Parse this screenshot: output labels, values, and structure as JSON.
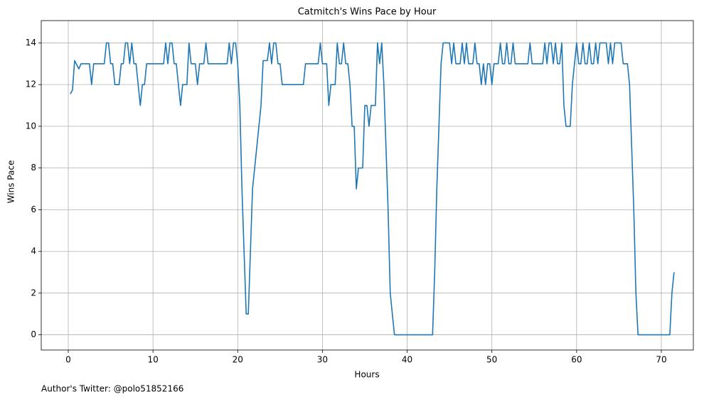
{
  "chart_data": {
    "type": "line",
    "title": "Catmitch's Wins Pace by Hour",
    "xlabel": "Hours",
    "ylabel": "Wins Pace",
    "footer": "Author's Twitter: @polo51852166",
    "x": [
      0.25,
      0.5,
      0.75,
      1.25,
      1.5,
      2.5,
      2.75,
      3,
      4.25,
      4.5,
      4.75,
      5,
      5.25,
      5.5,
      6,
      6.25,
      6.5,
      6.75,
      7,
      7.25,
      7.5,
      7.75,
      8,
      8.25,
      8.5,
      8.75,
      9,
      9.25,
      11.25,
      11.5,
      11.75,
      12,
      12.25,
      12.5,
      12.75,
      13.25,
      13.5,
      14,
      14.25,
      14.5,
      15,
      15.25,
      15.5,
      16,
      16.25,
      16.5,
      18.75,
      19,
      19.25,
      19.5,
      19.75,
      20,
      20.25,
      20.5,
      20.75,
      21,
      21.25,
      21.5,
      21.75,
      22,
      22.75,
      23,
      23.5,
      23.75,
      24,
      24.25,
      24.5,
      24.75,
      25,
      25.25,
      27.75,
      28,
      29.5,
      29.75,
      30,
      30.5,
      30.75,
      31,
      31.5,
      31.75,
      32,
      32.25,
      32.5,
      32.75,
      33,
      33.25,
      33.5,
      33.75,
      34,
      34.25,
      34.75,
      35,
      35.25,
      35.5,
      35.75,
      36.25,
      36.5,
      36.75,
      37,
      37.25,
      37.5,
      37.75,
      38,
      38.25,
      38.5,
      43,
      43.25,
      43.5,
      43.75,
      44,
      44.25,
      45,
      45.25,
      45.5,
      45.75,
      46.25,
      46.5,
      46.75,
      47,
      47.25,
      47.75,
      48,
      48.25,
      48.5,
      48.75,
      49,
      49.25,
      49.5,
      49.75,
      50,
      50.25,
      50.75,
      51,
      51.25,
      51.5,
      51.75,
      52,
      52.25,
      52.5,
      52.75,
      54.25,
      54.5,
      54.75,
      56,
      56.25,
      56.5,
      56.75,
      57,
      57.25,
      57.5,
      57.75,
      58,
      58.25,
      58.5,
      58.75,
      59.25,
      59.5,
      59.75,
      60,
      60.25,
      60.5,
      60.75,
      61,
      61.25,
      61.5,
      61.75,
      62,
      62.25,
      62.5,
      62.75,
      63.5,
      63.75,
      64,
      64.25,
      64.5,
      65.25,
      65.5,
      66,
      66.25,
      66.5,
      66.75,
      67,
      67.25,
      71,
      71.25,
      71.5
    ],
    "series": [
      {
        "color": "#1f77b4",
        "values": [
          11.55,
          11.75,
          13.15,
          12.75,
          13,
          13,
          12,
          13,
          13,
          14,
          14,
          13,
          13,
          12,
          12,
          13,
          13,
          14,
          14,
          13,
          14,
          13,
          13,
          12,
          11,
          12,
          12,
          13,
          13,
          14,
          13,
          14,
          14,
          13,
          13,
          11,
          12,
          12,
          14,
          13,
          13,
          12,
          13,
          13,
          14,
          13,
          13,
          14,
          13,
          14,
          14,
          13,
          11,
          7,
          4,
          1,
          1,
          4,
          7,
          8,
          11,
          13.15,
          13.15,
          14,
          13,
          14,
          14,
          13,
          13,
          12,
          12,
          13,
          13,
          14,
          13,
          13,
          11,
          12,
          12,
          14,
          13,
          13,
          14,
          13,
          13,
          12,
          10,
          10,
          7,
          8,
          8,
          11,
          11,
          10,
          11,
          11,
          14,
          13,
          14,
          12,
          9,
          6,
          2,
          1,
          0,
          0,
          3,
          7,
          10,
          13,
          14,
          14,
          13,
          14,
          13,
          13,
          14,
          13,
          14,
          13,
          13,
          14,
          13,
          13,
          12,
          13,
          12,
          13,
          13,
          12,
          13,
          13,
          14,
          13,
          13,
          14,
          13,
          13,
          14,
          13,
          13,
          14,
          13,
          13,
          14,
          13,
          14,
          14,
          13,
          14,
          13,
          13,
          14,
          11,
          10,
          10,
          12,
          13,
          14,
          13,
          13,
          14,
          13,
          13,
          14,
          13,
          13,
          14,
          13,
          14,
          14,
          13,
          14,
          13,
          14,
          14,
          13,
          13,
          12,
          9,
          6,
          2,
          0,
          0,
          2,
          3
        ]
      }
    ],
    "xlim": [
      -3.19,
      73.78
    ],
    "ylim": [
      -0.73,
      15.07
    ],
    "xticks": [
      0,
      10,
      20,
      30,
      40,
      50,
      60,
      70
    ],
    "yticks": [
      0,
      2,
      4,
      6,
      8,
      10,
      12,
      14
    ],
    "grid": true
  }
}
